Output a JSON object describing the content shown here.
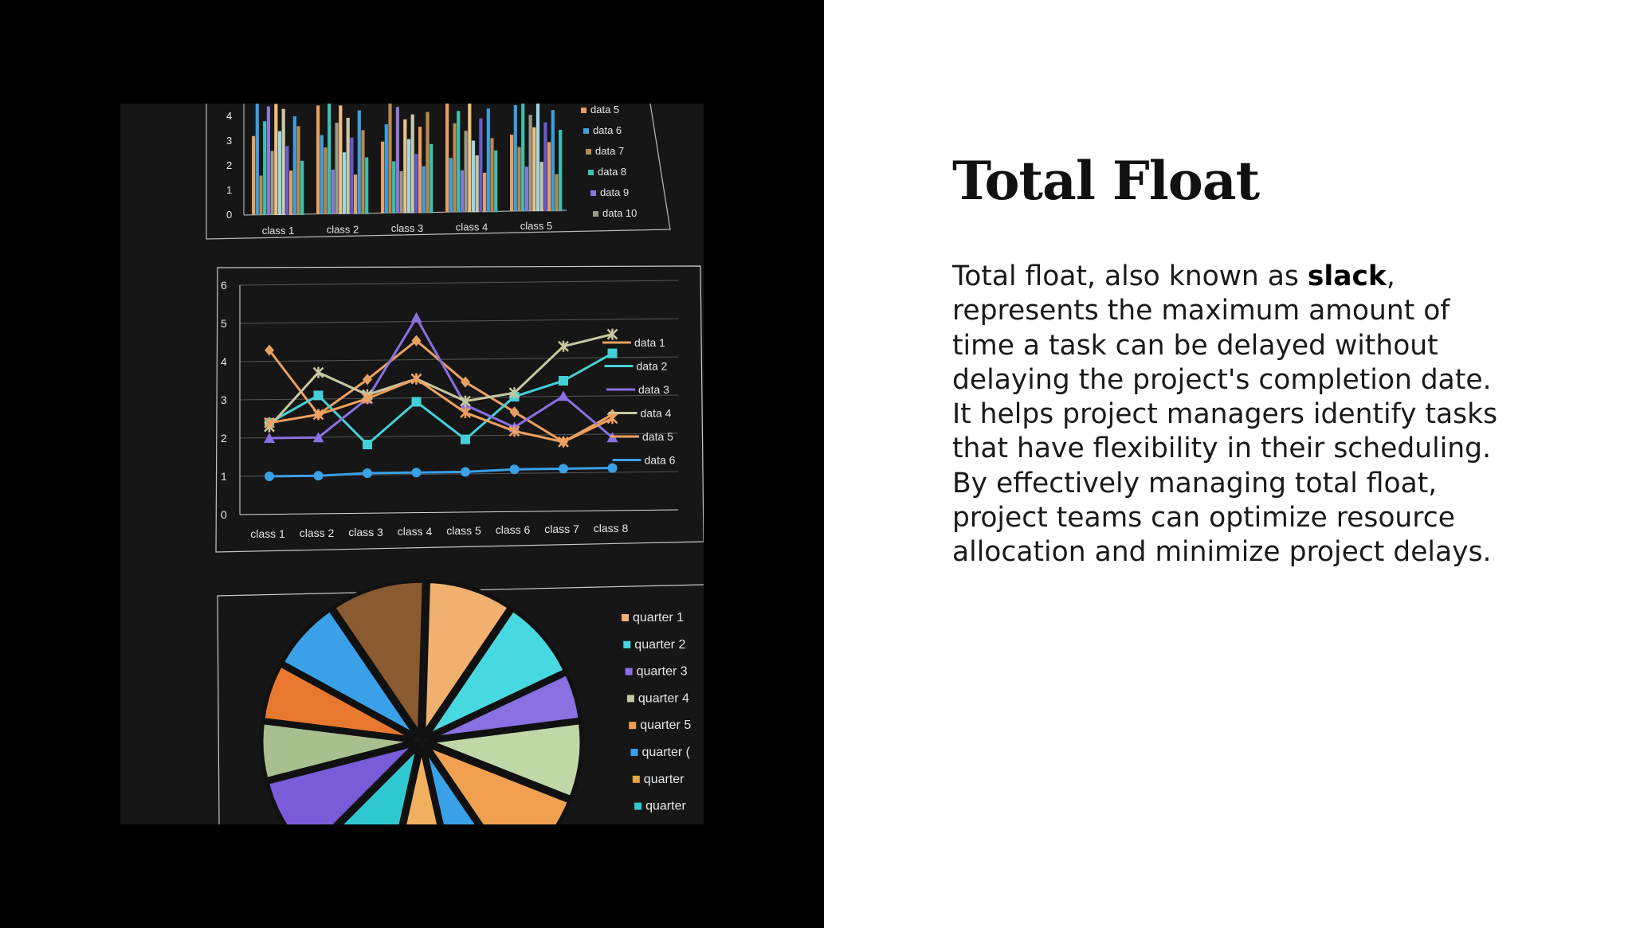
{
  "slide": {
    "title": "Total Float",
    "paragraph": {
      "before": "Total float, also known as ",
      "bold": "slack",
      "after": ", represents the maximum amount of time a task can be delayed without delaying the project's completion date. It helps project managers identify tasks that have flexibility in their scheduling. By effectively managing total float, project teams can optimize resource allocation and minimize project delays."
    }
  },
  "photo": {
    "icon": "photo-of-printed-charts",
    "chart_data": [
      {
        "type": "bar",
        "y_tick_labels": [
          "0",
          "1",
          "2",
          "3",
          "4"
        ],
        "categories": [
          "class 1",
          "class 2",
          "class 3",
          "class 4",
          "class 5"
        ],
        "legend": [
          "data 5",
          "data 6",
          "data 7",
          "data 8",
          "data 9",
          "data 10"
        ],
        "colors": [
          "#e8a060",
          "#3aa0e0",
          "#b98a50",
          "#3cc0b0",
          "#8a78d8",
          "#9a9a8a",
          "#f0c080",
          "#9ad8e8",
          "#c8c8a8",
          "#6a5acd"
        ],
        "heights": [
          [
            3.2,
            4.6,
            1.6,
            3.8,
            4.4,
            2.6,
            4.5,
            3.4,
            4.3,
            2.8,
            1.8,
            4.0,
            3.6,
            2.2
          ],
          [
            4.4,
            3.2,
            2.7,
            4.5,
            1.8,
            3.7,
            4.4,
            2.5,
            3.9,
            3.1,
            1.6,
            4.2,
            3.4,
            2.3
          ],
          [
            2.9,
            3.6,
            4.5,
            2.1,
            4.3,
            1.7,
            3.8,
            3.0,
            4.0,
            2.4,
            3.5,
            1.9,
            4.1,
            2.8
          ],
          [
            4.5,
            2.2,
            3.6,
            4.1,
            1.7,
            3.3,
            4.4,
            2.9,
            2.3,
            3.8,
            1.6,
            4.2,
            3.0,
            2.5
          ],
          [
            3.1,
            4.3,
            2.6,
            4.5,
            1.8,
            3.9,
            3.4,
            4.4,
            2.0,
            3.6,
            2.8,
            4.1,
            1.5,
            3.3
          ]
        ]
      },
      {
        "type": "line",
        "y_tick_labels": [
          "0",
          "1",
          "2",
          "3",
          "4",
          "5",
          "6"
        ],
        "categories": [
          "class 1",
          "class 2",
          "class 3",
          "class 4",
          "class 5",
          "class 6",
          "class 7",
          "class 8"
        ],
        "series": [
          {
            "name": "data 1",
            "color": "#e8a060",
            "marker": "diamond",
            "values": [
              4.3,
              2.6,
              3.5,
              4.5,
              3.4,
              2.6,
              1.8,
              2.5
            ]
          },
          {
            "name": "data 2",
            "color": "#45d0d8",
            "marker": "square",
            "values": [
              2.4,
              3.1,
              1.8,
              2.9,
              1.9,
              3.0,
              3.4,
              4.1
            ]
          },
          {
            "name": "data 3",
            "color": "#8a70e0",
            "marker": "triangle",
            "values": [
              2.0,
              2.0,
              3.0,
              5.1,
              2.8,
              2.2,
              3.0,
              1.9
            ]
          },
          {
            "name": "data 4",
            "color": "#c8c8a0",
            "marker": "x",
            "values": [
              2.3,
              3.7,
              3.1,
              3.5,
              2.9,
              3.1,
              4.3,
              4.6
            ]
          },
          {
            "name": "data 5",
            "color": "#f0a060",
            "marker": "star",
            "values": [
              2.4,
              2.6,
              3.0,
              3.5,
              2.6,
              2.1,
              1.8,
              2.4
            ]
          },
          {
            "name": "data 6",
            "color": "#3aa0e8",
            "marker": "circle",
            "values": [
              1.0,
              1.0,
              1.05,
              1.05,
              1.05,
              1.1,
              1.1,
              1.1
            ]
          }
        ]
      },
      {
        "type": "pie",
        "legend": [
          "quarter 1",
          "quarter 2",
          "quarter 3",
          "quarter 4",
          "quarter 5",
          "quarter (",
          "quarter",
          "quarter"
        ],
        "legend_colors": [
          "#f0b070",
          "#48d8e0",
          "#8a70e0",
          "#c0c8a0",
          "#f0a050",
          "#3aa0e8",
          "#e8a840",
          "#30c8d0"
        ],
        "slices": [
          {
            "value": 9,
            "color": "#f0b070"
          },
          {
            "value": 8.5,
            "color": "#48d8e0"
          },
          {
            "value": 5,
            "color": "#8a70e0"
          },
          {
            "value": 8,
            "color": "#c0d8a8"
          },
          {
            "value": 9.5,
            "color": "#f0a050"
          },
          {
            "value": 6,
            "color": "#3aa0e8"
          },
          {
            "value": 7,
            "color": "#f0b060"
          },
          {
            "value": 9,
            "color": "#30c8d0"
          },
          {
            "value": 8.5,
            "color": "#7a5cd8"
          },
          {
            "value": 6,
            "color": "#a8c090"
          },
          {
            "value": 6,
            "color": "#e87830"
          },
          {
            "value": 7.5,
            "color": "#3aa0e8"
          },
          {
            "value": 10,
            "color": "#8a5a30"
          }
        ]
      }
    ]
  }
}
